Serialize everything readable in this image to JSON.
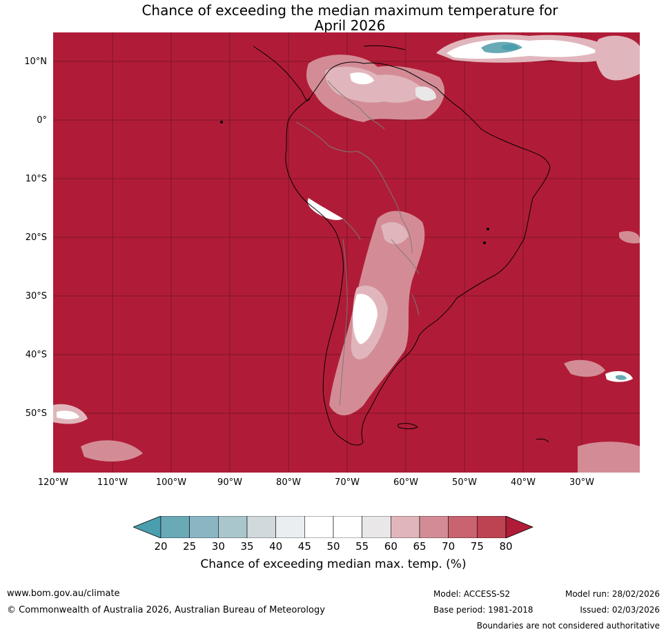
{
  "title": {
    "line1": "Chance of exceeding the median maximum temperature for",
    "line2": "April 2026"
  },
  "axes": {
    "lat_labels": [
      "10°N",
      "0°",
      "10°S",
      "20°S",
      "30°S",
      "40°S",
      "50°S"
    ],
    "lon_labels": [
      "120°W",
      "110°W",
      "100°W",
      "90°W",
      "80°W",
      "70°W",
      "60°W",
      "50°W",
      "40°W",
      "30°W"
    ]
  },
  "colorbar": {
    "ticks": [
      "20",
      "25",
      "30",
      "35",
      "40",
      "45",
      "50",
      "55",
      "60",
      "65",
      "70",
      "75",
      "80"
    ],
    "colors": [
      "#6aa9b6",
      "#8ab6c4",
      "#a9c6cc",
      "#d2d9dc",
      "#eaeef1",
      "#ffffff",
      "#ffffff",
      "#e9e7e8",
      "#e0b6bc",
      "#d38c96",
      "#c8636f",
      "#bd4352"
    ],
    "low_color": "#4a9eae",
    "high_color": "#b01c37",
    "label": "Chance of exceeding median max. temp. (%)"
  },
  "map_colors": {
    "ocean_high": "#b01c37",
    "land_border": "#000000",
    "country_border": "#7a7a7a"
  },
  "footer": {
    "website": "www.bom.gov.au/climate",
    "copyright": "© Commonwealth of Australia 2026, Australian Bureau of Meteorology",
    "model": "Model: ACCESS-S2",
    "base_period": "Base period: 1981-2018",
    "model_run": "Model run: 28/02/2026",
    "issued": "Issued: 02/03/2026",
    "disclaimer": "Boundaries are not considered authoritative"
  }
}
